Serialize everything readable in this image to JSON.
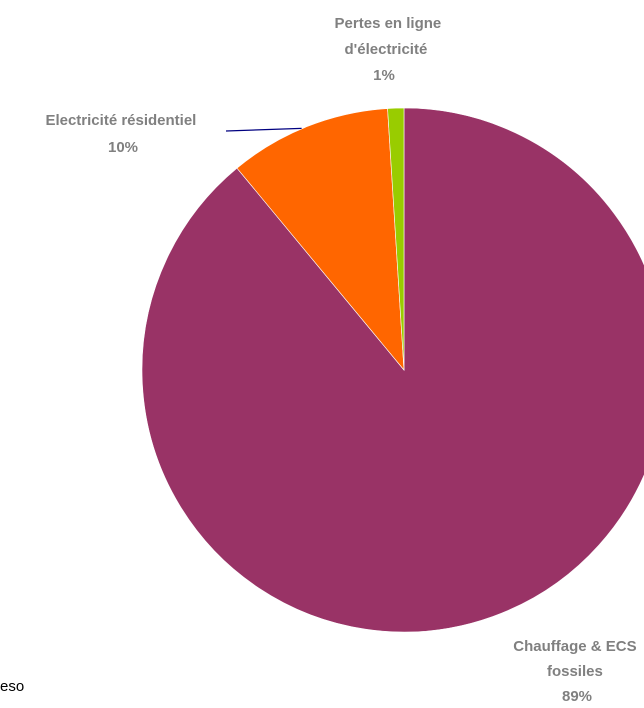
{
  "chart_data": {
    "type": "pie",
    "slices": [
      {
        "label_lines": [
          "Chauffage & ECS",
          "fossiles"
        ],
        "percent_label": "89%",
        "value": 89,
        "color": "#993366"
      },
      {
        "label_lines": [
          "Electricité résidentiel"
        ],
        "percent_label": "10%",
        "value": 10,
        "color": "#FF6600"
      },
      {
        "label_lines": [
          "Pertes en ligne",
          "d'électricité"
        ],
        "percent_label": "1%",
        "value": 1,
        "color": "#99CC00"
      }
    ],
    "start_angle": "12 o'clock, clockwise",
    "leader_line_color": "#000080",
    "label_color": "#808080"
  },
  "footer": {
    "fragment_text": "eso"
  }
}
